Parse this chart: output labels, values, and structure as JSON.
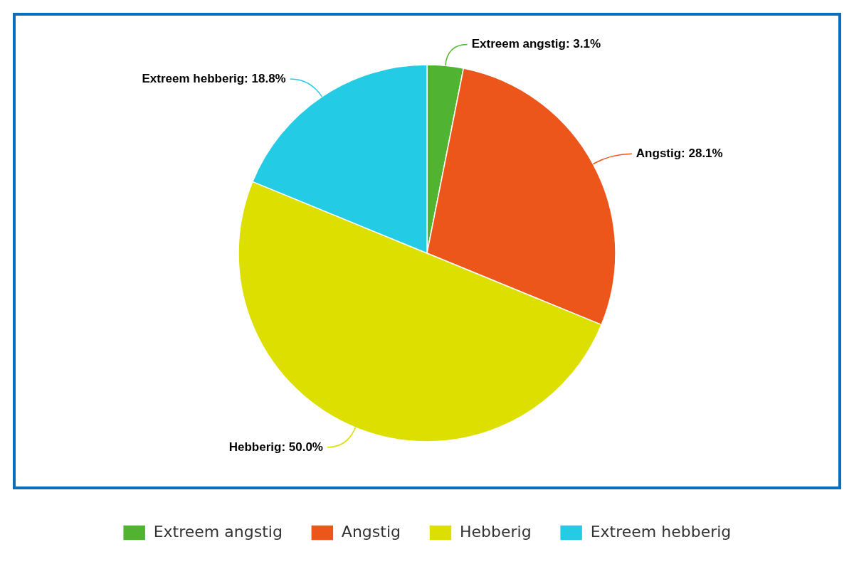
{
  "chart_data": {
    "type": "pie",
    "categories": [
      "Extreem angstig",
      "Angstig",
      "Hebberig",
      "Extreem hebberig"
    ],
    "values": [
      3.1,
      28.1,
      50.0,
      18.8
    ],
    "colors": [
      "#50b432",
      "#ed561b",
      "#dddf00",
      "#24cbe5"
    ],
    "value_labels": [
      "Extreem angstig: 3.1%",
      "Angstig: 28.1%",
      "Hebberig: 50.0%",
      "Extreem hebberig: 18.8%"
    ],
    "legend": "bottom"
  }
}
